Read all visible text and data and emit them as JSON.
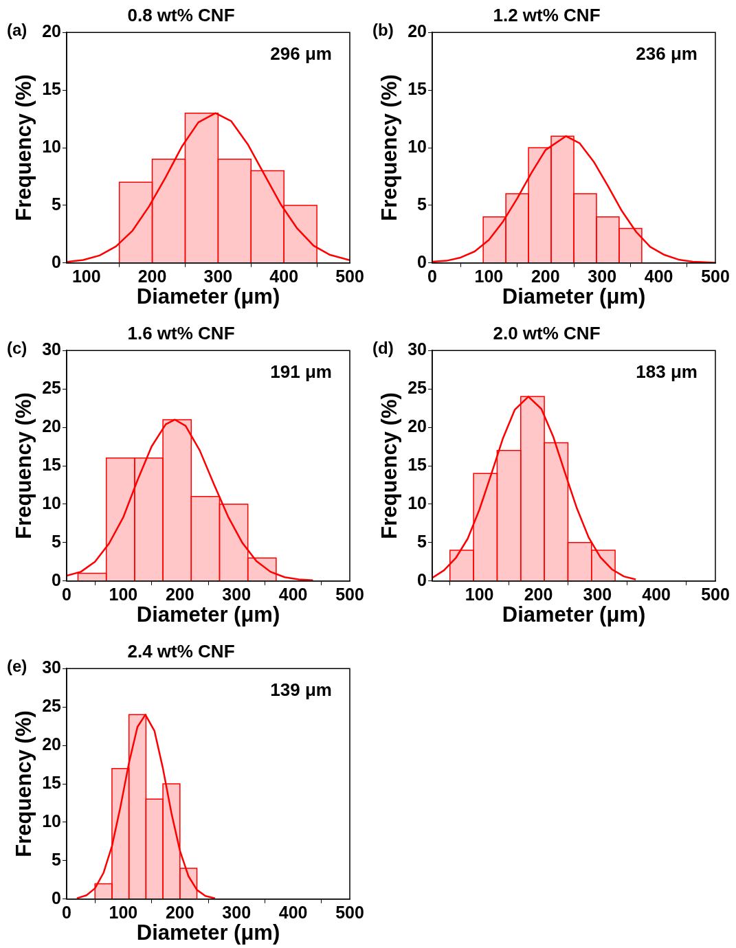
{
  "chart_data": [
    {
      "type": "histogram",
      "title": "0.8 wt% CNF",
      "xlabel": "Diameter (μm)",
      "ylabel": "Frequency (%)",
      "annotations": [
        "(a)",
        "296 μm"
      ],
      "bins": [
        150,
        200,
        250,
        300,
        350,
        400,
        450
      ],
      "values": [
        7,
        9,
        13,
        9,
        8,
        5
      ],
      "color": "#ff0000",
      "xlim": [
        70,
        500
      ],
      "xticks": [
        100,
        200,
        300,
        400,
        500
      ],
      "ylim": [
        0,
        20
      ],
      "yticks": [
        0,
        5,
        10,
        15,
        20
      ],
      "legend": false,
      "grid": false,
      "series": [
        {
          "type": "line",
          "color": "#ff0000",
          "x": [
            70,
            95,
            120,
            145,
            170,
            195,
            220,
            245,
            270,
            296,
            320,
            345,
            370,
            395,
            420,
            445,
            470,
            500
          ],
          "values": [
            0.09,
            0.26,
            0.65,
            1.44,
            2.8,
            4.9,
            7.4,
            10.1,
            12.2,
            13,
            12.3,
            10.3,
            7.7,
            5.1,
            3.0,
            1.5,
            0.7,
            0.24
          ]
        }
      ]
    },
    {
      "type": "histogram",
      "title": "1.2 wt% CNF",
      "xlabel": "Diameter (μm)",
      "ylabel": "Frequency (%)",
      "annotations": [
        "(b)",
        "236 μm"
      ],
      "bins": [
        90,
        130,
        170,
        210,
        250,
        290,
        330,
        370
      ],
      "values": [
        4,
        6,
        10,
        11,
        6,
        4,
        3
      ],
      "color": "#ff0000",
      "xlim": [
        0,
        500
      ],
      "xticks": [
        0,
        100,
        200,
        300,
        400,
        500
      ],
      "ylim": [
        0,
        20
      ],
      "yticks": [
        0,
        5,
        10,
        15,
        20
      ],
      "legend": false,
      "grid": false,
      "series": [
        {
          "type": "line",
          "color": "#ff0000",
          "x": [
            0,
            25,
            50,
            75,
            100,
            125,
            150,
            175,
            200,
            236,
            260,
            285,
            310,
            335,
            360,
            385,
            410,
            435,
            460,
            500
          ],
          "values": [
            0.1,
            0.19,
            0.47,
            1.0,
            2.0,
            3.6,
            5.6,
            7.8,
            9.8,
            11,
            10.4,
            8.8,
            6.7,
            4.5,
            2.7,
            1.4,
            0.7,
            0.29,
            0.11,
            0.02
          ]
        }
      ]
    },
    {
      "type": "histogram",
      "title": "1.6 wt% CNF",
      "xlabel": "Diameter (μm)",
      "ylabel": "Frequency (%)",
      "annotations": [
        "(c)",
        "191 μm"
      ],
      "bins": [
        20,
        70,
        120,
        170,
        220,
        270,
        320,
        370
      ],
      "values": [
        1,
        16,
        16,
        21,
        11,
        10,
        3
      ],
      "color": "#ff0000",
      "xlim": [
        0,
        500
      ],
      "xticks": [
        0,
        100,
        200,
        300,
        400,
        500
      ],
      "ylim": [
        0,
        30
      ],
      "yticks": [
        0,
        5,
        10,
        15,
        20,
        25,
        30
      ],
      "legend": false,
      "grid": false,
      "series": [
        {
          "type": "line",
          "color": "#ff0000",
          "x": [
            0,
            25,
            50,
            75,
            100,
            125,
            150,
            175,
            191,
            210,
            235,
            260,
            285,
            310,
            335,
            360,
            385,
            410,
            435
          ],
          "values": [
            0.7,
            1.2,
            2.5,
            4.9,
            8.3,
            13.1,
            17.5,
            20.4,
            21,
            20.2,
            17.0,
            12.6,
            8.4,
            5.0,
            2.6,
            1.2,
            0.5,
            0.2,
            0.1
          ]
        }
      ]
    },
    {
      "type": "histogram",
      "title": "2.0 wt% CNF",
      "xlabel": "Diameter (μm)",
      "ylabel": "Frequency (%)",
      "annotations": [
        "(d)",
        "183 μm"
      ],
      "bins": [
        50,
        90,
        130,
        170,
        210,
        250,
        290,
        330
      ],
      "values": [
        4,
        14,
        17,
        24,
        18,
        5,
        4
      ],
      "color": "#ff0000",
      "xlim": [
        20,
        500
      ],
      "xticks": [
        100,
        200,
        300,
        400,
        500
      ],
      "ylim": [
        0,
        30
      ],
      "yticks": [
        0,
        5,
        10,
        15,
        20,
        25,
        30
      ],
      "legend": false,
      "grid": false,
      "series": [
        {
          "type": "line",
          "color": "#ff0000",
          "x": [
            20,
            40,
            60,
            80,
            100,
            120,
            140,
            160,
            183,
            205,
            225,
            245,
            265,
            285,
            305,
            325,
            345,
            365
          ],
          "values": [
            0.4,
            1.4,
            3.0,
            5.5,
            9.3,
            13.9,
            18.6,
            22.3,
            24,
            22.4,
            18.8,
            14.1,
            9.5,
            5.7,
            3.1,
            1.5,
            0.6,
            0.2
          ]
        }
      ]
    },
    {
      "type": "histogram",
      "title": "2.4 wt% CNF",
      "xlabel": "Diameter (μm)",
      "ylabel": "Frequency (%)",
      "annotations": [
        "(e)",
        "139 μm"
      ],
      "bins": [
        50,
        80,
        110,
        140,
        170,
        200,
        230
      ],
      "values": [
        2,
        17,
        24,
        13,
        15,
        4
      ],
      "color": "#ff0000",
      "xlim": [
        0,
        500
      ],
      "xticks": [
        0,
        100,
        200,
        300,
        400,
        500
      ],
      "ylim": [
        0,
        30
      ],
      "yticks": [
        0,
        5,
        10,
        15,
        20,
        25,
        30
      ],
      "legend": false,
      "grid": false,
      "series": [
        {
          "type": "line",
          "color": "#ff0000",
          "x": [
            18,
            35,
            50,
            65,
            80,
            95,
            110,
            125,
            139,
            155,
            170,
            185,
            200,
            215,
            230,
            245,
            262
          ],
          "values": [
            0.1,
            0.5,
            1.4,
            3.4,
            6.9,
            12.0,
            17.7,
            22.4,
            24,
            21.9,
            17.0,
            11.2,
            6.3,
            3.0,
            1.2,
            0.4,
            0.1
          ]
        }
      ]
    }
  ]
}
